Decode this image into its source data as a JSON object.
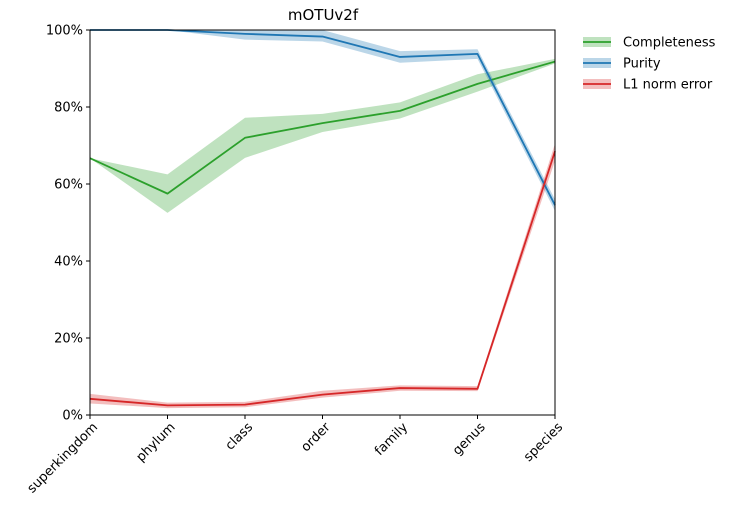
{
  "chart_data": {
    "type": "line",
    "title": "mOTUv2f",
    "xlabel": "",
    "ylabel": "",
    "categories": [
      "superkingdom",
      "phylum",
      "class",
      "order",
      "family",
      "genus",
      "species"
    ],
    "ylim": [
      0,
      100
    ],
    "yticks": [
      0,
      20,
      40,
      60,
      80,
      100
    ],
    "ytick_labels": [
      "0%",
      "20%",
      "40%",
      "60%",
      "80%",
      "100%"
    ],
    "grid": false,
    "legend_position": "outside-top-right",
    "series": [
      {
        "name": "Completeness",
        "color": "#2ca02c",
        "band_color": "#2ca02c",
        "values": [
          66.7,
          57.5,
          72.0,
          75.8,
          79.0,
          86.0,
          91.8
        ],
        "lower": [
          66.7,
          52.5,
          66.8,
          73.5,
          77.0,
          84.0,
          91.3
        ],
        "upper": [
          66.7,
          62.5,
          77.2,
          78.2,
          81.2,
          88.5,
          92.5
        ]
      },
      {
        "name": "Purity",
        "color": "#1f77b4",
        "band_color": "#1f77b4",
        "values": [
          100,
          100,
          99.0,
          98.3,
          93.0,
          93.8,
          54.5
        ],
        "lower": [
          100,
          100,
          97.5,
          97.0,
          91.5,
          92.5,
          53.0
        ],
        "upper": [
          100,
          100,
          100,
          100,
          94.5,
          95.0,
          56.0
        ]
      },
      {
        "name": "L1 norm error",
        "color": "#d62728",
        "band_color": "#d62728",
        "values": [
          4.2,
          2.5,
          2.7,
          5.3,
          7.0,
          6.8,
          68.5
        ],
        "lower": [
          3.0,
          1.8,
          2.0,
          4.5,
          6.3,
          6.2,
          66.0
        ],
        "upper": [
          5.5,
          3.2,
          3.4,
          6.3,
          7.7,
          7.5,
          70.5
        ]
      }
    ]
  }
}
